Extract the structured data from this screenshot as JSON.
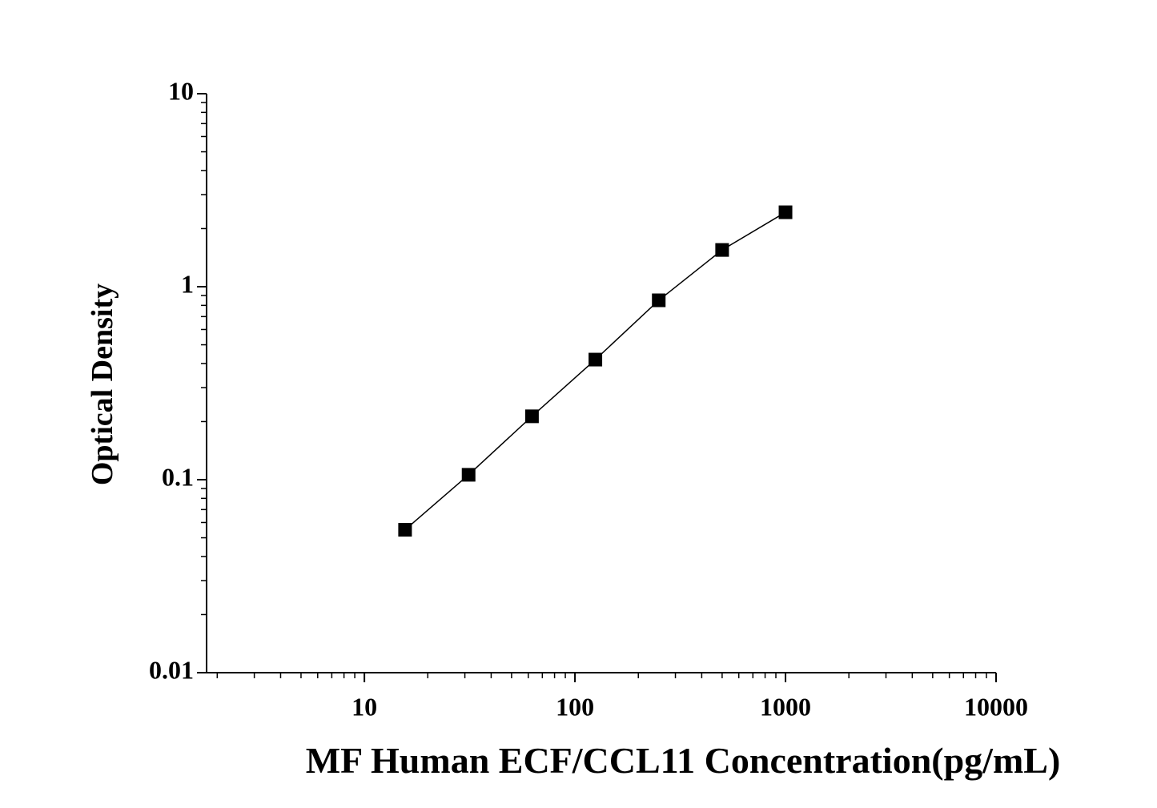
{
  "chart_data": {
    "type": "line",
    "x_label": "MF Human ECF/CCL11 Concentration(pg/mL)",
    "y_label": "Optical Density",
    "x": [
      15.6,
      31.25,
      62.5,
      125,
      250,
      500,
      1000
    ],
    "series": [
      {
        "color": "#000000",
        "values": [
          0.055,
          0.106,
          0.213,
          0.419,
          0.85,
          1.55,
          2.43
        ]
      }
    ],
    "xlim": [
      1.78,
      10000
    ],
    "ylim": [
      0.01,
      10
    ],
    "xticks": [
      10,
      100,
      1000,
      10000
    ],
    "yticks": [
      0.01,
      0.1,
      1,
      10
    ],
    "log_x": true,
    "log_y": true,
    "grid": false
  }
}
